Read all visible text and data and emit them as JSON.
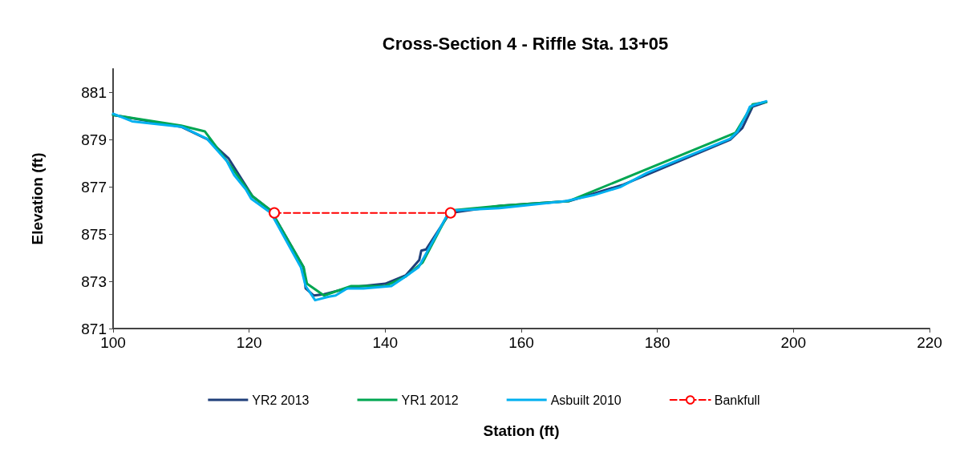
{
  "chart_data": {
    "type": "line",
    "title": "Cross-Section 4 - Riffle Sta. 13+05",
    "xlabel": "Station (ft)",
    "ylabel": "Elevation (ft)",
    "xlim": [
      100,
      220
    ],
    "xticks": [
      100,
      120,
      140,
      160,
      180,
      200,
      220
    ],
    "ylim": [
      871,
      882
    ],
    "yticks": [
      871,
      873,
      875,
      877,
      879,
      881
    ],
    "grid": false,
    "legend": "bottom",
    "series": [
      {
        "name": "YR2 2013",
        "color": "#1f3f7a",
        "marker": "none",
        "line_style": "solid",
        "x": [
          100,
          103,
          110,
          114,
          117,
          120.5,
          123.2,
          128,
          128.3,
          129.5,
          131,
          135,
          140,
          143,
          145,
          145.3,
          146,
          149.5,
          157,
          167,
          175,
          190.7,
          192.5,
          194,
          196
        ],
        "values": [
          880.05,
          879.9,
          879.55,
          879.0,
          878.2,
          876.6,
          876.0,
          873.6,
          872.7,
          872.4,
          872.45,
          872.75,
          872.9,
          873.25,
          873.9,
          874.3,
          874.35,
          875.9,
          876.2,
          876.4,
          877.1,
          879.0,
          879.5,
          880.4,
          880.6
        ]
      },
      {
        "name": "YR1 2012",
        "color": "#00a651",
        "marker": "none",
        "line_style": "solid",
        "x": [
          100,
          110,
          113.5,
          117,
          120.5,
          123.2,
          128,
          128.5,
          131,
          135,
          140,
          143,
          145.5,
          149.5,
          157,
          167,
          191.5,
          194,
          196
        ],
        "values": [
          880.05,
          879.6,
          879.35,
          878.0,
          876.6,
          876.0,
          873.6,
          872.9,
          872.4,
          872.8,
          872.8,
          873.2,
          873.8,
          876.0,
          876.2,
          876.4,
          879.3,
          880.5,
          880.6
        ]
      },
      {
        "name": "Asbuilt 2010",
        "color": "#00b0f0",
        "marker": "none",
        "line_style": "solid",
        "x": [
          100,
          102.8,
          110.1,
          113.8,
          116.7,
          117.8,
          119.5,
          120.3,
          123.2,
          127.6,
          128.3,
          129.7,
          131.7,
          132.7,
          134.4,
          136.8,
          140.9,
          142.7,
          144.9,
          149.2,
          149.7,
          156.8,
          166.5,
          170.6,
          174.5,
          178.5,
          190.7,
          191.8,
          193,
          193.6,
          194.5,
          196
        ],
        "values": [
          880.1,
          879.78,
          879.55,
          879.04,
          878.1,
          877.5,
          876.9,
          876.5,
          875.9,
          873.6,
          872.8,
          872.2,
          872.35,
          872.4,
          872.7,
          872.7,
          872.8,
          873.15,
          873.6,
          875.85,
          876.0,
          876.1,
          876.4,
          876.65,
          876.99,
          877.6,
          879.04,
          879.35,
          880.0,
          880.4,
          880.5,
          880.63
        ]
      },
      {
        "name": "Bankfull",
        "color": "#ff0000",
        "marker": "circle",
        "line_style": "dashed",
        "x": [
          123.7,
          149.6
        ],
        "values": [
          875.9,
          875.9
        ]
      }
    ]
  }
}
